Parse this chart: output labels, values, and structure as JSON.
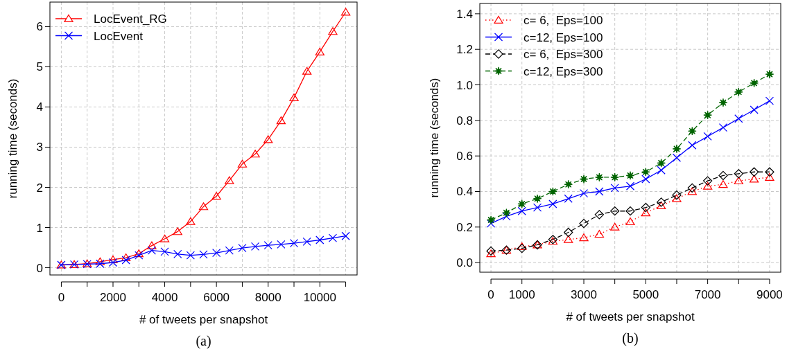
{
  "chart_data": [
    {
      "type": "line",
      "xlabel": "# of tweets per snapshot",
      "ylabel": "running time (seconds)",
      "annotations": [
        "(a)"
      ],
      "x": [
        0,
        500,
        1000,
        1500,
        2000,
        2500,
        3000,
        3500,
        4000,
        4500,
        5000,
        5500,
        6000,
        6500,
        7000,
        7500,
        8000,
        8500,
        9000,
        9500,
        10000,
        10500,
        11000
      ],
      "series": [
        {
          "name": "LocEvent_RG",
          "color": "#ff0000",
          "marker": "triangle",
          "line_style": "solid",
          "values": [
            0.07,
            0.08,
            0.1,
            0.15,
            0.2,
            0.25,
            0.35,
            0.55,
            0.72,
            0.9,
            1.15,
            1.52,
            1.78,
            2.17,
            2.58,
            2.83,
            3.19,
            3.66,
            4.23,
            4.89,
            5.37,
            5.88,
            6.36
          ]
        },
        {
          "name": "LocEvent",
          "color": "#0000ff",
          "marker": "cross",
          "line_style": "solid",
          "values": [
            0.07,
            0.08,
            0.09,
            0.1,
            0.13,
            0.19,
            0.31,
            0.43,
            0.4,
            0.34,
            0.31,
            0.33,
            0.37,
            0.43,
            0.49,
            0.53,
            0.56,
            0.58,
            0.61,
            0.65,
            0.69,
            0.74,
            0.79
          ]
        }
      ],
      "xlim": [
        -440,
        11440
      ],
      "xticks": [
        0,
        {
          "value": 1000,
          "label": null
        },
        2000,
        {
          "value": 3000,
          "label": null
        },
        4000,
        {
          "value": 5000,
          "label": null
        },
        6000,
        {
          "value": 7000,
          "label": null
        },
        8000,
        {
          "value": 9000,
          "label": null
        },
        10000,
        {
          "value": 11000,
          "label": null
        }
      ],
      "ylim": [
        -0.18,
        6.61
      ],
      "yticks": [
        0,
        1,
        2,
        3,
        4,
        5,
        6
      ],
      "grid": true,
      "legend": "top left"
    },
    {
      "type": "line",
      "xlabel": "# of tweets per snapshot",
      "ylabel": "running time (seconds)",
      "annotations": [
        "(b)"
      ],
      "x": [
        0,
        500,
        1000,
        1500,
        2000,
        2500,
        3000,
        3500,
        4000,
        4500,
        5000,
        5500,
        6000,
        6500,
        7000,
        7500,
        8000,
        8500,
        9000
      ],
      "series": [
        {
          "name": "c= 6,  Eps=100",
          "color": "#ff0000",
          "marker": "triangle",
          "line_style": "dotted",
          "values": [
            0.05,
            0.07,
            0.09,
            0.1,
            0.12,
            0.13,
            0.14,
            0.16,
            0.2,
            0.23,
            0.28,
            0.32,
            0.36,
            0.4,
            0.43,
            0.44,
            0.46,
            0.47,
            0.48
          ]
        },
        {
          "name": "c=12, Eps=100",
          "color": "#0000ff",
          "marker": "cross",
          "line_style": "solid",
          "values": [
            0.22,
            0.26,
            0.29,
            0.31,
            0.33,
            0.36,
            0.39,
            0.4,
            0.42,
            0.43,
            0.47,
            0.52,
            0.59,
            0.66,
            0.71,
            0.76,
            0.81,
            0.86,
            0.91
          ]
        },
        {
          "name": "c= 6,  Eps=300",
          "color": "#000000",
          "marker": "diamond",
          "line_style": "dashed",
          "values": [
            0.065,
            0.07,
            0.08,
            0.1,
            0.13,
            0.17,
            0.22,
            0.27,
            0.29,
            0.29,
            0.31,
            0.34,
            0.38,
            0.42,
            0.46,
            0.49,
            0.5,
            0.51,
            0.51
          ]
        },
        {
          "name": "c=12, Eps=300",
          "color": "#006400",
          "marker": "star",
          "line_style": "dashed",
          "values": [
            0.24,
            0.28,
            0.33,
            0.36,
            0.4,
            0.44,
            0.47,
            0.48,
            0.48,
            0.49,
            0.51,
            0.56,
            0.64,
            0.74,
            0.83,
            0.9,
            0.96,
            1.01,
            1.06
          ]
        }
      ],
      "xlim": [
        -360,
        9360
      ],
      "xticks": [
        0,
        1000,
        {
          "value": 2000,
          "label": null
        },
        3000,
        {
          "value": 4000,
          "label": null
        },
        5000,
        {
          "value": 6000,
          "label": null
        },
        7000,
        {
          "value": 8000,
          "label": null
        },
        9000
      ],
      "ylim": [
        -0.054,
        1.458
      ],
      "yticks": [
        {
          "value": 0,
          "label": "0.0"
        },
        {
          "value": 0.2,
          "label": "0.2"
        },
        {
          "value": 0.4,
          "label": "0.4"
        },
        {
          "value": 0.6,
          "label": "0.6"
        },
        {
          "value": 0.8,
          "label": "0.8"
        },
        {
          "value": 1,
          "label": "1.0"
        },
        {
          "value": 1.2,
          "label": "1.2"
        },
        {
          "value": 1.4,
          "label": "1.4"
        }
      ],
      "grid": true,
      "legend": "top left"
    }
  ]
}
